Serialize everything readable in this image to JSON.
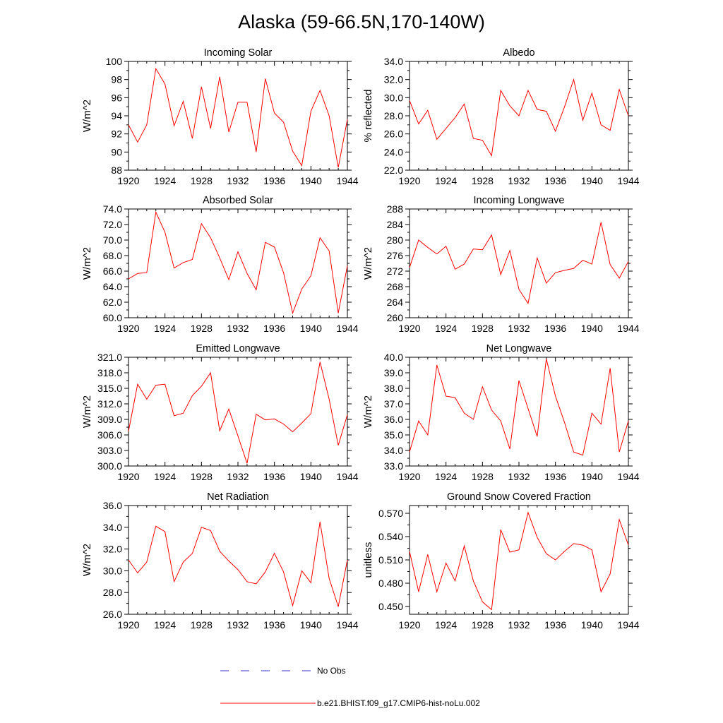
{
  "title": "Alaska (59-66.5N,170-140W)",
  "colors": {
    "model": "#ff0000",
    "obs": "#3333cc",
    "axis": "#000000"
  },
  "legend": [
    {
      "label": "No Obs",
      "style": "dashed",
      "color": "#3333cc"
    },
    {
      "label": "b.e21.BHIST.f09_g17.CMIP6-hist-noLu.002",
      "style": "solid",
      "color": "#ff0000"
    }
  ],
  "chart_data": [
    {
      "type": "line",
      "title": "Incoming Solar",
      "ylabel": "W/m^2",
      "xlim": [
        1920,
        1944
      ],
      "ylim": [
        88,
        100
      ],
      "xticks": [
        "1920",
        "1924",
        "1928",
        "1932",
        "1936",
        "1940",
        "1944"
      ],
      "yticks": [
        "88",
        "90",
        "92",
        "94",
        "96",
        "98",
        "100"
      ],
      "x": [
        1920,
        1921,
        1922,
        1923,
        1924,
        1925,
        1926,
        1927,
        1928,
        1929,
        1930,
        1931,
        1932,
        1933,
        1934,
        1935,
        1936,
        1937,
        1938,
        1939,
        1940,
        1941,
        1942,
        1943,
        1944
      ],
      "series": [
        {
          "name": "b.e21.BHIST.f09_g17.CMIP6-hist-noLu.002",
          "values": [
            93.0,
            91.1,
            93.0,
            99.2,
            97.5,
            92.9,
            95.6,
            91.5,
            97.2,
            92.6,
            98.3,
            92.2,
            95.5,
            95.5,
            90.0,
            98.1,
            94.3,
            93.3,
            90.1,
            88.5,
            94.5,
            96.8,
            94.0,
            88.3,
            93.6
          ]
        }
      ]
    },
    {
      "type": "line",
      "title": "Albedo",
      "ylabel": "% reflected",
      "xlim": [
        1920,
        1944
      ],
      "ylim": [
        22,
        34
      ],
      "xticks": [
        "1920",
        "1924",
        "1928",
        "1932",
        "1936",
        "1940",
        "1944"
      ],
      "yticks": [
        "22.0",
        "24.0",
        "26.0",
        "28.0",
        "30.0",
        "32.0",
        "34.0"
      ],
      "x": [
        1920,
        1921,
        1922,
        1923,
        1924,
        1925,
        1926,
        1927,
        1928,
        1929,
        1930,
        1931,
        1932,
        1933,
        1934,
        1935,
        1936,
        1937,
        1938,
        1939,
        1940,
        1941,
        1942,
        1943,
        1944
      ],
      "series": [
        {
          "name": "b.e21.BHIST.f09_g17.CMIP6-hist-noLu.002",
          "values": [
            29.7,
            27.1,
            28.6,
            25.4,
            26.6,
            27.8,
            29.3,
            25.5,
            25.3,
            23.6,
            30.8,
            29.1,
            28.0,
            30.8,
            28.7,
            28.5,
            26.3,
            29.0,
            32.0,
            27.5,
            30.5,
            27.0,
            26.4,
            30.9,
            28.0
          ]
        }
      ]
    },
    {
      "type": "line",
      "title": "Absorbed Solar",
      "ylabel": "W/m^2",
      "xlim": [
        1920,
        1944
      ],
      "ylim": [
        60,
        74
      ],
      "xticks": [
        "1920",
        "1924",
        "1928",
        "1932",
        "1936",
        "1940",
        "1944"
      ],
      "yticks": [
        "60.0",
        "62.0",
        "64.0",
        "66.0",
        "68.0",
        "70.0",
        "72.0",
        "74.0"
      ],
      "x": [
        1920,
        1921,
        1922,
        1923,
        1924,
        1925,
        1926,
        1927,
        1928,
        1929,
        1930,
        1931,
        1932,
        1933,
        1934,
        1935,
        1936,
        1937,
        1938,
        1939,
        1940,
        1941,
        1942,
        1943,
        1944
      ],
      "series": [
        {
          "name": "b.e21.BHIST.f09_g17.CMIP6-hist-noLu.002",
          "values": [
            65.0,
            65.7,
            65.8,
            73.6,
            71.0,
            66.4,
            67.1,
            67.5,
            72.1,
            70.3,
            67.7,
            64.9,
            68.5,
            65.7,
            63.6,
            69.7,
            69.1,
            65.8,
            60.6,
            63.7,
            65.4,
            70.3,
            68.6,
            60.6,
            66.7
          ]
        }
      ]
    },
    {
      "type": "line",
      "title": "Incoming Longwave",
      "ylabel": "W/m^2",
      "xlim": [
        1920,
        1944
      ],
      "ylim": [
        260,
        288
      ],
      "xticks": [
        "1920",
        "1924",
        "1928",
        "1932",
        "1936",
        "1940",
        "1944"
      ],
      "yticks": [
        "260",
        "264",
        "268",
        "272",
        "276",
        "280",
        "284",
        "288"
      ],
      "x": [
        1920,
        1921,
        1922,
        1923,
        1924,
        1925,
        1926,
        1927,
        1928,
        1929,
        1930,
        1931,
        1932,
        1933,
        1934,
        1935,
        1936,
        1937,
        1938,
        1939,
        1940,
        1941,
        1942,
        1943,
        1944
      ],
      "series": [
        {
          "name": "b.e21.BHIST.f09_g17.CMIP6-hist-noLu.002",
          "values": [
            272.9,
            280.0,
            278.1,
            276.4,
            278.4,
            272.5,
            273.8,
            277.7,
            277.5,
            281.3,
            271.1,
            277.3,
            267.3,
            263.7,
            275.4,
            268.9,
            271.6,
            272.2,
            272.7,
            274.8,
            273.8,
            284.6,
            273.7,
            270.2,
            274.5
          ]
        }
      ]
    },
    {
      "type": "line",
      "title": "Emitted Longwave",
      "ylabel": "W/m^2",
      "xlim": [
        1920,
        1944
      ],
      "ylim": [
        300,
        321
      ],
      "xticks": [
        "1920",
        "1924",
        "1928",
        "1932",
        "1936",
        "1940",
        "1944"
      ],
      "yticks": [
        "300.0",
        "303.0",
        "306.0",
        "309.0",
        "312.0",
        "315.0",
        "318.0",
        "321.0"
      ],
      "x": [
        1920,
        1921,
        1922,
        1923,
        1924,
        1925,
        1926,
        1927,
        1928,
        1929,
        1930,
        1931,
        1932,
        1933,
        1934,
        1935,
        1936,
        1937,
        1938,
        1939,
        1940,
        1941,
        1942,
        1943,
        1944
      ],
      "series": [
        {
          "name": "b.e21.BHIST.f09_g17.CMIP6-hist-noLu.002",
          "values": [
            306.7,
            315.8,
            312.9,
            315.6,
            315.8,
            309.7,
            310.2,
            313.6,
            315.4,
            318.0,
            306.8,
            311.0,
            305.8,
            300.5,
            310.0,
            308.9,
            309.1,
            308.1,
            306.6,
            308.3,
            310.1,
            320.1,
            312.9,
            304.0,
            309.9
          ]
        }
      ]
    },
    {
      "type": "line",
      "title": "Net Longwave",
      "ylabel": "W/m^2",
      "xlim": [
        1920,
        1944
      ],
      "ylim": [
        33,
        40
      ],
      "xticks": [
        "1920",
        "1924",
        "1928",
        "1932",
        "1936",
        "1940",
        "1944"
      ],
      "yticks": [
        "33.0",
        "34.0",
        "35.0",
        "36.0",
        "37.0",
        "38.0",
        "39.0",
        "40.0"
      ],
      "x": [
        1920,
        1921,
        1922,
        1923,
        1924,
        1925,
        1926,
        1927,
        1928,
        1929,
        1930,
        1931,
        1932,
        1933,
        1934,
        1935,
        1936,
        1937,
        1938,
        1939,
        1940,
        1941,
        1942,
        1943,
        1944
      ],
      "series": [
        {
          "name": "b.e21.BHIST.f09_g17.CMIP6-hist-noLu.002",
          "values": [
            33.9,
            35.9,
            35.0,
            39.5,
            37.5,
            37.4,
            36.4,
            36.0,
            38.1,
            36.6,
            35.9,
            34.1,
            38.5,
            36.7,
            34.9,
            39.9,
            37.5,
            35.8,
            33.9,
            33.7,
            36.4,
            35.7,
            39.3,
            33.9,
            35.9
          ]
        }
      ]
    },
    {
      "type": "line",
      "title": "Net Radiation",
      "ylabel": "W/m^2",
      "xlim": [
        1920,
        1944
      ],
      "ylim": [
        26,
        36
      ],
      "xticks": [
        "1920",
        "1924",
        "1928",
        "1932",
        "1936",
        "1940",
        "1944"
      ],
      "yticks": [
        "26.0",
        "28.0",
        "30.0",
        "32.0",
        "34.0",
        "36.0"
      ],
      "x": [
        1920,
        1921,
        1922,
        1923,
        1924,
        1925,
        1926,
        1927,
        1928,
        1929,
        1930,
        1931,
        1932,
        1933,
        1934,
        1935,
        1936,
        1937,
        1938,
        1939,
        1940,
        1941,
        1942,
        1943,
        1944
      ],
      "series": [
        {
          "name": "b.e21.BHIST.f09_g17.CMIP6-hist-noLu.002",
          "values": [
            31.0,
            29.8,
            30.8,
            34.1,
            33.6,
            29.0,
            30.8,
            31.6,
            34.0,
            33.7,
            31.8,
            30.9,
            30.1,
            29.0,
            28.8,
            29.9,
            31.6,
            29.9,
            26.8,
            30.0,
            28.9,
            34.5,
            29.3,
            26.7,
            31.0
          ]
        }
      ]
    },
    {
      "type": "line",
      "title": "Ground Snow Covered Fraction",
      "ylabel": "unitless",
      "xlim": [
        1920,
        1944
      ],
      "ylim": [
        0.44,
        0.58
      ],
      "xticks": [
        "1920",
        "1924",
        "1928",
        "1932",
        "1936",
        "1940",
        "1944"
      ],
      "yticks": [
        "0.450",
        "0.480",
        "0.510",
        "0.540",
        "0.570"
      ],
      "x": [
        1920,
        1921,
        1922,
        1923,
        1924,
        1925,
        1926,
        1927,
        1928,
        1929,
        1930,
        1931,
        1932,
        1933,
        1934,
        1935,
        1936,
        1937,
        1938,
        1939,
        1940,
        1941,
        1942,
        1943,
        1944
      ],
      "series": [
        {
          "name": "b.e21.BHIST.f09_g17.CMIP6-hist-noLu.002",
          "values": [
            0.521,
            0.469,
            0.517,
            0.469,
            0.506,
            0.483,
            0.528,
            0.483,
            0.456,
            0.446,
            0.549,
            0.52,
            0.523,
            0.571,
            0.539,
            0.518,
            0.51,
            0.521,
            0.531,
            0.529,
            0.523,
            0.469,
            0.492,
            0.562,
            0.529
          ]
        }
      ]
    }
  ]
}
